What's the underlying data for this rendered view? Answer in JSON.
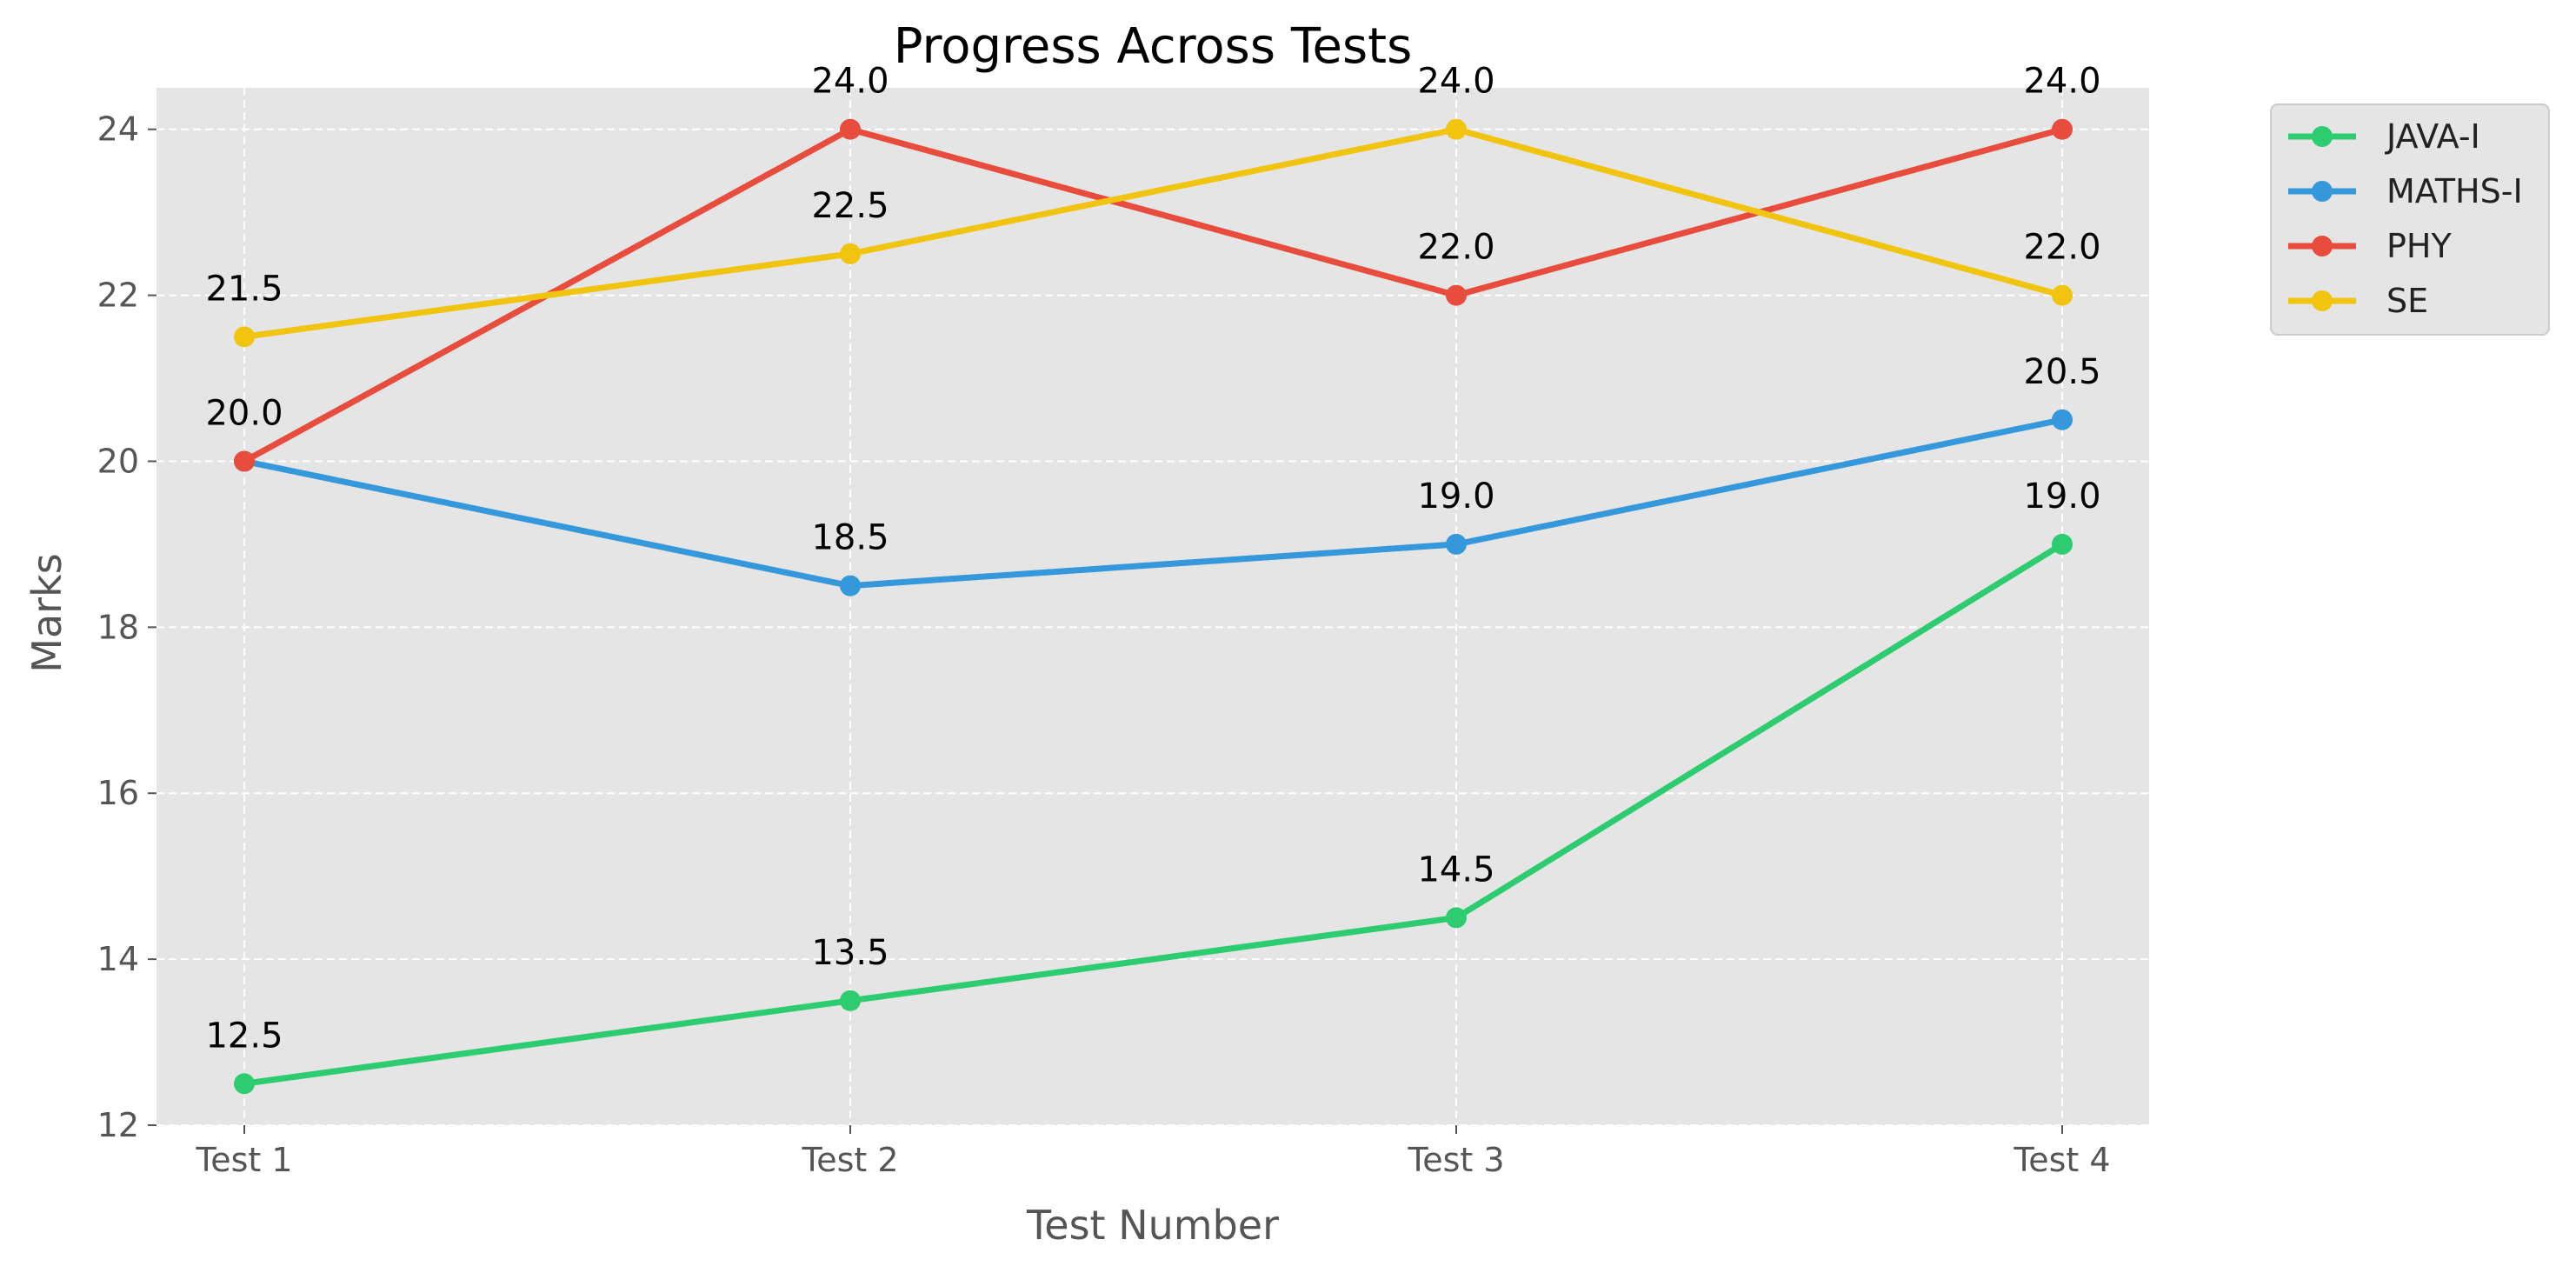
{
  "chart_data": {
    "type": "line",
    "title": "Progress Across Tests",
    "xlabel": "Test Number",
    "ylabel": "Marks",
    "categories": [
      "Test 1",
      "Test 2",
      "Test 3",
      "Test 4"
    ],
    "ylim": [
      12,
      24.5
    ],
    "yticks": [
      12,
      14,
      16,
      18,
      20,
      22,
      24
    ],
    "grid": true,
    "legend_position": "outside-top-right",
    "series": [
      {
        "name": "JAVA-I",
        "color": "#2ecc71",
        "values": [
          12.5,
          13.5,
          14.5,
          19.0
        ]
      },
      {
        "name": "MATHS-I",
        "color": "#3498db",
        "values": [
          20.0,
          18.5,
          19.0,
          20.5
        ]
      },
      {
        "name": "PHY",
        "color": "#e74c3c",
        "values": [
          20.0,
          24.0,
          22.0,
          24.0
        ]
      },
      {
        "name": "SE",
        "color": "#f1c40f",
        "values": [
          21.5,
          22.5,
          24.0,
          22.0
        ]
      }
    ],
    "data_labels": [
      {
        "category": "Test 1",
        "series": "JAVA-I",
        "text": "12.5"
      },
      {
        "category": "Test 2",
        "series": "JAVA-I",
        "text": "13.5"
      },
      {
        "category": "Test 3",
        "series": "JAVA-I",
        "text": "14.5"
      },
      {
        "category": "Test 4",
        "series": "JAVA-I",
        "text": "19.0"
      },
      {
        "category": "Test 1",
        "series": "PHY",
        "text": "20.0"
      },
      {
        "category": "Test 2",
        "series": "MATHS-I",
        "text": "18.5"
      },
      {
        "category": "Test 3",
        "series": "MATHS-I",
        "text": "19.0"
      },
      {
        "category": "Test 4",
        "series": "MATHS-I",
        "text": "20.5"
      },
      {
        "category": "Test 2",
        "series": "PHY",
        "text": "24.0"
      },
      {
        "category": "Test 3",
        "series": "PHY",
        "text": "22.0"
      },
      {
        "category": "Test 4",
        "series": "PHY",
        "text": "24.0"
      },
      {
        "category": "Test 1",
        "series": "SE",
        "text": "21.5"
      },
      {
        "category": "Test 2",
        "series": "SE",
        "text": "22.5"
      },
      {
        "category": "Test 3",
        "series": "SE",
        "text": "24.0"
      },
      {
        "category": "Test 4",
        "series": "SE",
        "text": "22.0"
      }
    ]
  }
}
